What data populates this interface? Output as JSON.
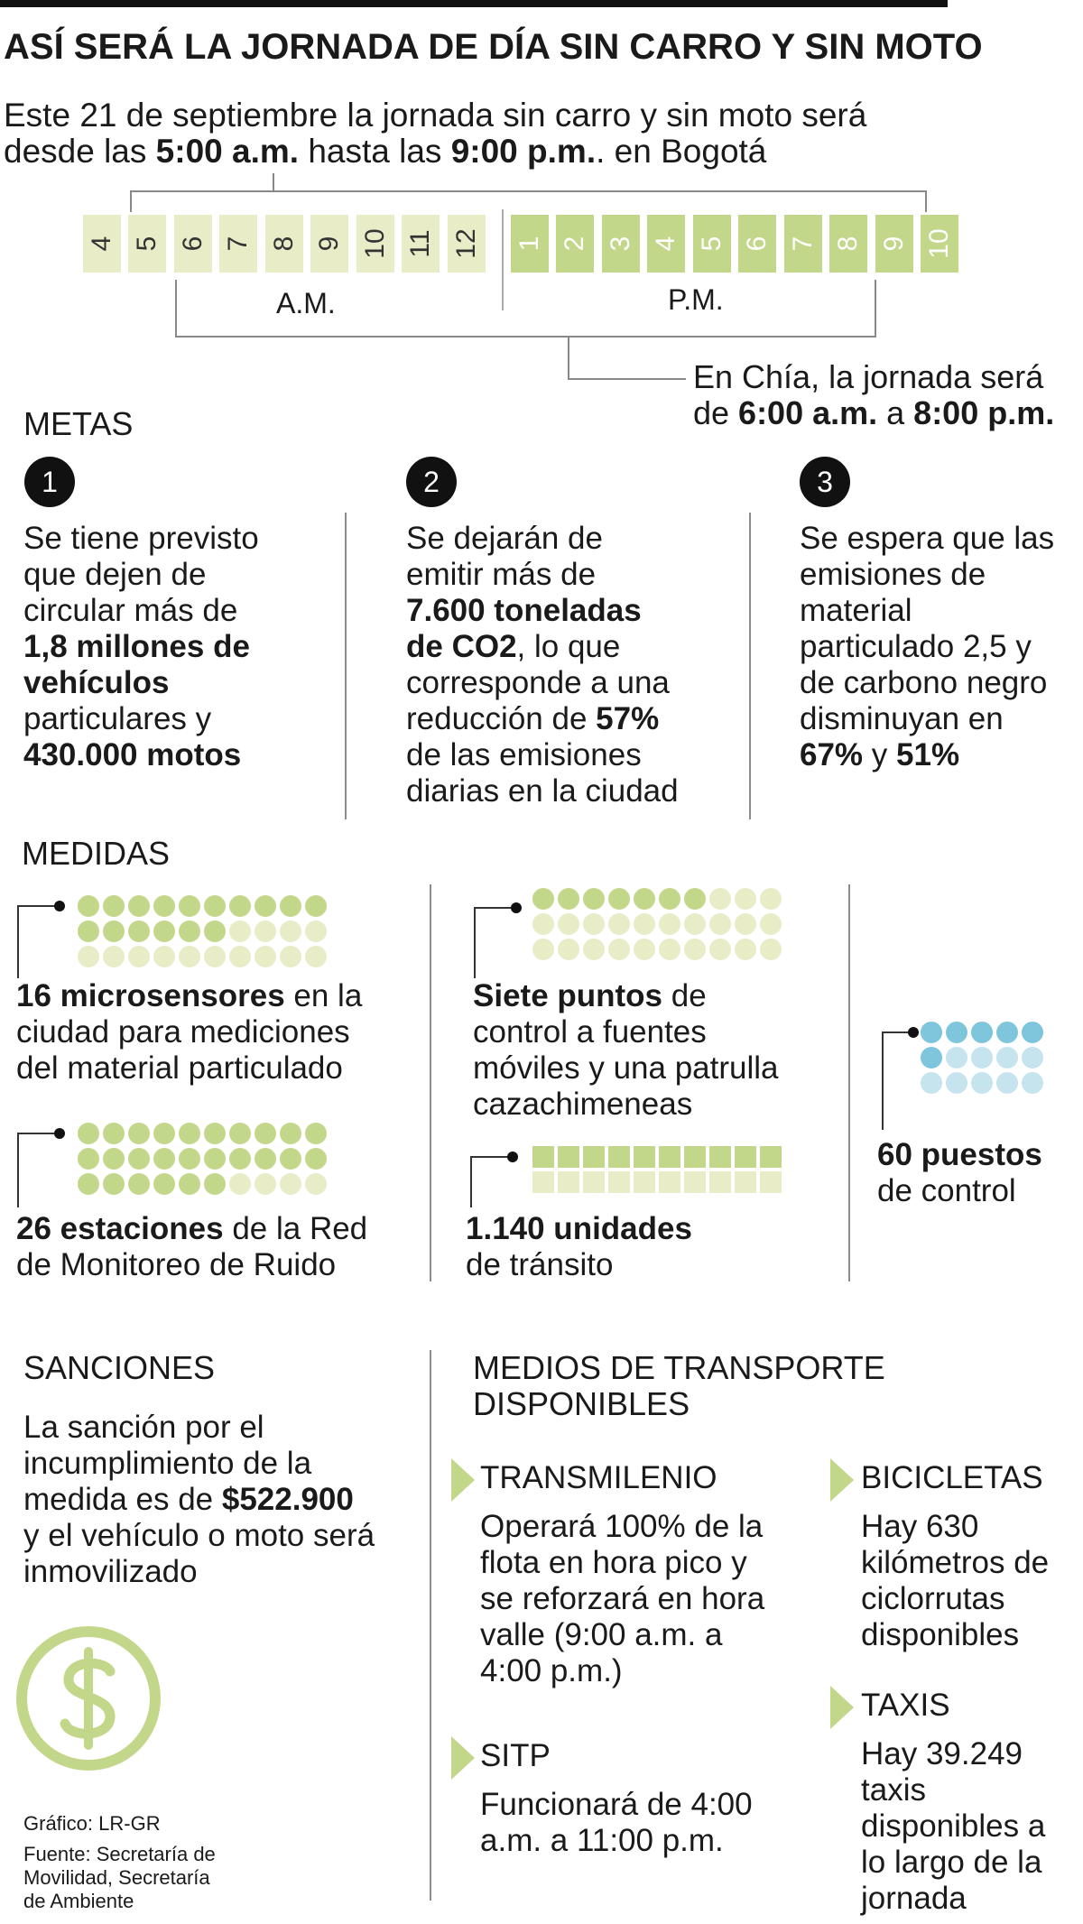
{
  "title": "ASÍ SERÁ LA JORNADA DE DÍA SIN CARRO Y SIN MOTO",
  "intro": {
    "line1": "Este 21 de septiembre la jornada sin carro y sin moto será",
    "desde": "desde las ",
    "start": "5:00 a.m.",
    "hasta": " hasta las ",
    "end": "9:00 p.m.",
    "city": ". en Bogotá"
  },
  "timeline": {
    "am_hours": [
      "4",
      "5",
      "6",
      "7",
      "8",
      "9",
      "10",
      "11",
      "12"
    ],
    "pm_hours": [
      "1",
      "2",
      "3",
      "4",
      "5",
      "6",
      "7",
      "8",
      "9",
      "10"
    ],
    "am_label": "A.M.",
    "pm_label": "P.M.",
    "colors": {
      "am": "#e8edc8",
      "pm": "#c3d78b"
    }
  },
  "chia": {
    "line1": "En Chía, la jornada será",
    "de": "de ",
    "start": "6:00 a.m.",
    "a": " a ",
    "end": "8:00 p.m."
  },
  "metas": {
    "heading": "METAS",
    "items": [
      {
        "number": "1",
        "l1": "Se tiene previsto",
        "l2": "que dejen de",
        "l3": "circular más de",
        "b1": "1,8 millones de",
        "b2": "vehículos",
        "l4": "particulares y",
        "b3": "430.000 motos"
      },
      {
        "number": "2",
        "l1": "Se dejarán de",
        "l2": "emitir más de",
        "b1": "7.600 toneladas",
        "b2": "de CO2",
        "l3": ", lo que",
        "l4": "corresponde a una",
        "l5": "reducción de ",
        "b3": "57%",
        "l6": "de las emisiones",
        "l7": "diarias en la ciudad"
      },
      {
        "number": "3",
        "l1": "Se espera que las",
        "l2": "emisiones de",
        "l3": "material",
        "l4": "particulado 2,5 y",
        "l5": "de carbono negro",
        "l6": "disminuyan en",
        "b1": "67%",
        "y": " y ",
        "b2": "51%"
      }
    ]
  },
  "medidas": {
    "heading": "MEDIDAS",
    "sensores": {
      "bold": "16 microsensores",
      "rest": " en la",
      "l2": "ciudad para mediciones",
      "l3": "del material particulado",
      "count": 16
    },
    "estaciones": {
      "bold": "26 estaciones",
      "rest": " de la Red",
      "l2": "de Monitoreo de Ruido",
      "count": 26
    },
    "puntos": {
      "bold": "Siete puntos",
      "rest": " de",
      "l2": "control a fuentes",
      "l3": "móviles y una patrulla",
      "l4": "cazachimeneas",
      "count": 7
    },
    "unidades": {
      "bold": "1.140 unidades",
      "l2": "de tránsito"
    },
    "puestos": {
      "bold": "60 puestos",
      "l2": "de control"
    }
  },
  "sanciones": {
    "heading": "SANCIONES",
    "l1": "La sanción por el",
    "l2": "incumplimiento de la",
    "l3": "medida es de ",
    "amount": "$522.900",
    "l4": "y el vehículo o moto será",
    "l5": "inmovilizado",
    "icon": "dollar-icon"
  },
  "transporte": {
    "heading1": "MEDIOS DE TRANSPORTE",
    "heading2": "DISPONIBLES",
    "transmilenio": {
      "name": "TRANSMILENIO",
      "l1": "Operará 100% de la",
      "l2": "flota en hora pico y",
      "l3": "se reforzará en hora",
      "l4": "valle (9:00 a.m. a",
      "l5": "4:00 p.m.)"
    },
    "sitp": {
      "name": "SITP",
      "l1": "Funcionará de 4:00",
      "l2": "a.m. a 11:00 p.m."
    },
    "bicicletas": {
      "name": "BICICLETAS",
      "l1": "Hay 630",
      "l2": "kilómetros de",
      "l3": "ciclorrutas",
      "l4": "disponibles"
    },
    "taxis": {
      "name": "TAXIS",
      "l1": "Hay 39.249",
      "l2": "taxis",
      "l3": "disponibles a",
      "l4": "lo largo de la",
      "l5": "jornada"
    }
  },
  "credits": {
    "grafico": "Gráfico: LR-GR",
    "fuente1": "Fuente: Secretaría de",
    "fuente2": "Movilidad, Secretaría",
    "fuente3": "de Ambiente"
  },
  "colors": {
    "green_dark": "#c3d78b",
    "green_light": "#e8edc8",
    "blue_dark": "#7fc6dc",
    "blue_light": "#c6e4ee"
  }
}
